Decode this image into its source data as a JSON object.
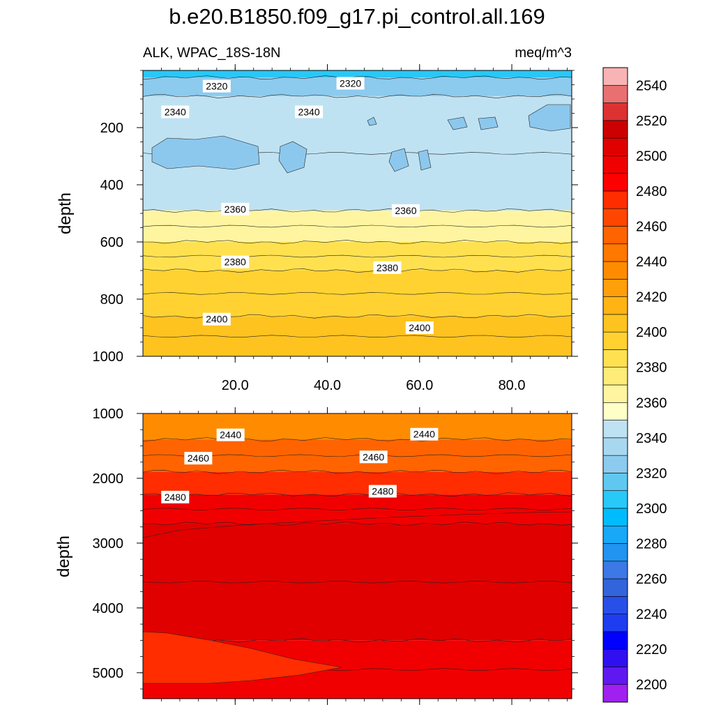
{
  "chart_data": {
    "title": "b.e20.B1850.f09_g17.pi_control.all.169",
    "variable": "ALK, WPAC_18S-18N",
    "units": "meq/m^3",
    "type": "contour",
    "panels": [
      {
        "name": "upper",
        "ylabel": "depth",
        "ylim": [
          0,
          1000
        ],
        "yticks": [
          200,
          400,
          600,
          800,
          1000
        ],
        "ytick_labels": [
          "200",
          "400",
          "600",
          "800",
          "1000"
        ],
        "xlim": [
          0,
          93
        ],
        "xticks": [
          20,
          40,
          60,
          80
        ],
        "xtick_labels": [
          "20.0",
          "40.0",
          "60.0",
          "80.0"
        ],
        "bands": [
          {
            "depth": 0,
            "value": 2300
          },
          {
            "depth": 25,
            "value": 2320
          },
          {
            "depth": 90,
            "value": 2340
          },
          {
            "depth": 490,
            "value": 2360
          },
          {
            "depth": 600,
            "value": 2380
          },
          {
            "depth": 700,
            "value": 2390
          },
          {
            "depth": 860,
            "value": 2400
          },
          {
            "depth": 1000,
            "value": 2410
          }
        ],
        "contour_labels": [
          {
            "text": "2320",
            "x": 16,
            "depth": 55
          },
          {
            "text": "2320",
            "x": 45,
            "depth": 45
          },
          {
            "text": "2340",
            "x": 7,
            "depth": 145
          },
          {
            "text": "2340",
            "x": 36,
            "depth": 145
          },
          {
            "text": "2360",
            "x": 20,
            "depth": 485
          },
          {
            "text": "2360",
            "x": 57,
            "depth": 490
          },
          {
            "text": "2380",
            "x": 20,
            "depth": 670
          },
          {
            "text": "2380",
            "x": 53,
            "depth": 690
          },
          {
            "text": "2400",
            "x": 16,
            "depth": 870
          },
          {
            "text": "2400",
            "x": 60,
            "depth": 900
          }
        ]
      },
      {
        "name": "lower",
        "ylabel": "depth",
        "ylim": [
          1000,
          5400
        ],
        "yticks": [
          1000,
          2000,
          3000,
          4000,
          5000
        ],
        "ytick_labels": [
          "1000",
          "2000",
          "3000",
          "4000",
          "5000"
        ],
        "xlim": [
          0,
          93
        ],
        "bands": [
          {
            "depth": 1000,
            "value": 2430
          },
          {
            "depth": 1400,
            "value": 2450
          },
          {
            "depth": 1900,
            "value": 2470
          },
          {
            "depth": 2250,
            "value": 2490
          },
          {
            "depth": 2700,
            "value": 2500
          },
          {
            "depth": 4500,
            "value": 2490
          }
        ],
        "contour_labels": [
          {
            "text": "2440",
            "x": 19,
            "depth": 1330
          },
          {
            "text": "2440",
            "x": 61,
            "depth": 1320
          },
          {
            "text": "2460",
            "x": 12,
            "depth": 1690
          },
          {
            "text": "2460",
            "x": 50,
            "depth": 1670
          },
          {
            "text": "2480",
            "x": 7,
            "depth": 2290
          },
          {
            "text": "2480",
            "x": 52,
            "depth": 2200
          }
        ]
      }
    ],
    "colorbar": {
      "levels": [
        2200,
        2220,
        2240,
        2260,
        2280,
        2300,
        2320,
        2340,
        2360,
        2380,
        2400,
        2420,
        2440,
        2460,
        2480,
        2500,
        2520,
        2540
      ],
      "tick_labels": [
        "2200",
        "2220",
        "2240",
        "2260",
        "2280",
        "2300",
        "2320",
        "2340",
        "2360",
        "2380",
        "2400",
        "2420",
        "2440",
        "2460",
        "2480",
        "2500",
        "2520",
        "2540"
      ],
      "colors": [
        "#a020f0",
        "#6018f0",
        "#3010f0",
        "#0000ff",
        "#1e3cf0",
        "#2850e8",
        "#3264dc",
        "#3c78e6",
        "#2094f0",
        "#18a8f8",
        "#00bcff",
        "#28c8f8",
        "#60c8f0",
        "#8ccaee",
        "#a8d8f0",
        "#bfe2f2",
        "#ffffc8",
        "#fff5a0",
        "#ffeb78",
        "#ffe150",
        "#ffd232",
        "#ffc320",
        "#ffb414",
        "#ffa00a",
        "#ff8c00",
        "#ff7800",
        "#ff6400",
        "#ff4600",
        "#ff2d00",
        "#ff0000",
        "#f00000",
        "#e00000",
        "#cc0000",
        "#dc3232",
        "#e87070",
        "#f8b4b4"
      ]
    }
  }
}
